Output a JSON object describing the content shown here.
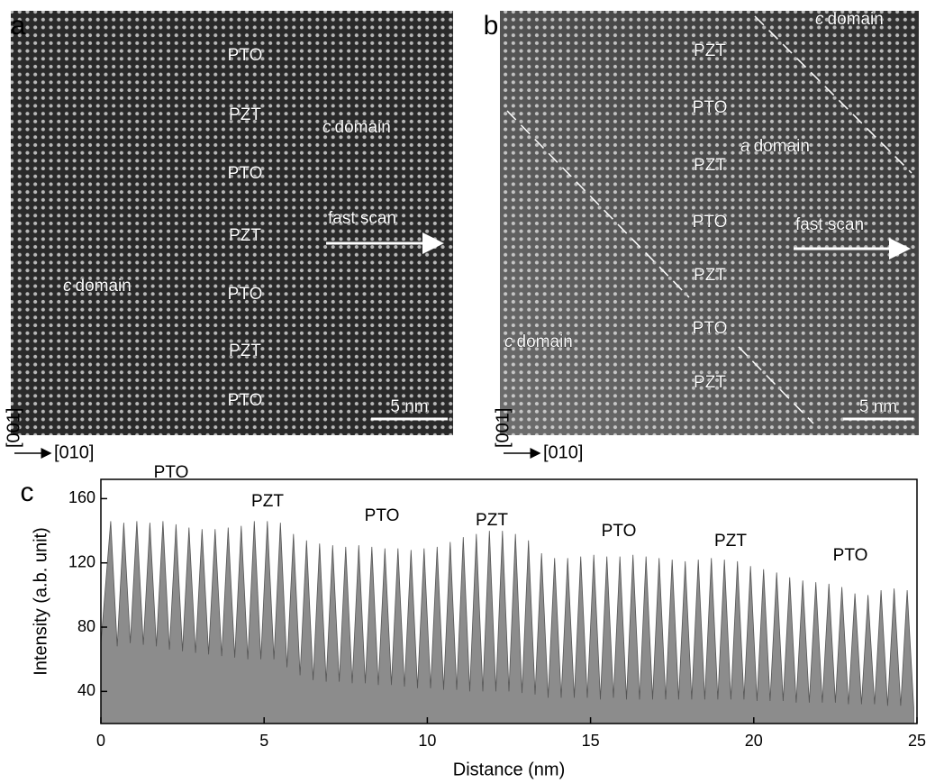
{
  "panel_a": {
    "label": "a",
    "layers": [
      "PTO",
      "PZT",
      "PTO",
      "PZT",
      "PTO",
      "PZT",
      "PTO"
    ],
    "domains": [
      {
        "italic": "c",
        "text": "domain"
      },
      {
        "italic": "c",
        "text": "domain"
      }
    ],
    "scan": "fast scan",
    "scale_bar": "5 nm",
    "axis_vertical": "[001]",
    "axis_horizontal": "[010]"
  },
  "panel_b": {
    "label": "b",
    "layers": [
      "PZT",
      "PTO",
      "PZT",
      "PTO",
      "PZT",
      "PTO",
      "PZT"
    ],
    "domains": [
      {
        "italic": "c",
        "text": "domain"
      },
      {
        "italic": "a",
        "text": "domain"
      },
      {
        "italic": "c",
        "text": "domain"
      }
    ],
    "scan": "fast scan",
    "scale_bar": "5 nm",
    "axis_vertical": "[001]",
    "axis_horizontal": "[010]"
  },
  "chart_data": {
    "type": "area",
    "panel_label": "c",
    "xlabel": "Distance (nm)",
    "ylabel": "Intensity (a.b. unit)",
    "annotations": [
      "PTO",
      "PZT",
      "PTO",
      "PZT",
      "PTO",
      "PZT",
      "PTO"
    ],
    "color": "#8c8c8c",
    "xlim": [
      0,
      25
    ],
    "ylim": [
      20,
      172
    ],
    "xticks": [
      0,
      5,
      10,
      15,
      20,
      25
    ],
    "yticks": [
      40,
      80,
      120,
      160
    ],
    "x": [
      0,
      0.3,
      0.5,
      0.7,
      0.9,
      1.1,
      1.3,
      1.5,
      1.7,
      1.9,
      2.1,
      2.3,
      2.5,
      2.7,
      2.9,
      3.1,
      3.3,
      3.5,
      3.7,
      3.9,
      4.1,
      4.3,
      4.5,
      4.7,
      4.9,
      5.1,
      5.3,
      5.5,
      5.7,
      5.9,
      6.1,
      6.3,
      6.5,
      6.7,
      6.9,
      7.1,
      7.3,
      7.5,
      7.7,
      7.9,
      8.1,
      8.3,
      8.5,
      8.7,
      8.9,
      9.1,
      9.3,
      9.5,
      9.7,
      9.9,
      10.1,
      10.3,
      10.5,
      10.7,
      10.9,
      11.1,
      11.3,
      11.5,
      11.7,
      11.9,
      12.1,
      12.3,
      12.5,
      12.7,
      12.9,
      13.1,
      13.3,
      13.5,
      13.7,
      13.9,
      14.1,
      14.3,
      14.5,
      14.7,
      14.9,
      15.1,
      15.3,
      15.5,
      15.7,
      15.9,
      16.1,
      16.3,
      16.5,
      16.7,
      16.9,
      17.1,
      17.3,
      17.5,
      17.7,
      17.9,
      18.1,
      18.3,
      18.5,
      18.7,
      18.9,
      19.1,
      19.3,
      19.5,
      19.7,
      19.9,
      20.1,
      20.3,
      20.5,
      20.7,
      20.9,
      21.1,
      21.3,
      21.5,
      21.7,
      21.9,
      22.1,
      22.3,
      22.5,
      22.7,
      22.9,
      23.1,
      23.3,
      23.5,
      23.7,
      23.9,
      24.1,
      24.3,
      24.5,
      24.7,
      24.9
    ],
    "values": [
      70,
      146,
      68,
      145,
      70,
      146,
      69,
      145,
      68,
      146,
      66,
      144,
      65,
      142,
      64,
      141,
      63,
      141,
      62,
      142,
      61,
      143,
      60,
      146,
      60,
      146,
      60,
      145,
      55,
      138,
      50,
      134,
      47,
      132,
      46,
      131,
      46,
      130,
      45,
      131,
      45,
      130,
      44,
      129,
      44,
      129,
      43,
      128,
      42,
      129,
      42,
      130,
      41,
      133,
      41,
      136,
      40,
      138,
      40,
      140,
      40,
      140,
      40,
      138,
      39,
      134,
      38,
      126,
      36,
      123,
      36,
      123,
      36,
      124,
      36,
      125,
      35,
      124,
      36,
      124,
      35,
      125,
      35,
      124,
      35,
      123,
      35,
      122,
      35,
      121,
      35,
      122,
      35,
      123,
      35,
      122,
      35,
      121,
      35,
      118,
      34,
      116,
      34,
      114,
      34,
      111,
      33,
      109,
      33,
      108,
      33,
      107,
      33,
      105,
      32,
      101,
      32,
      100,
      32,
      103,
      31,
      104,
      31,
      103,
      30
    ]
  }
}
